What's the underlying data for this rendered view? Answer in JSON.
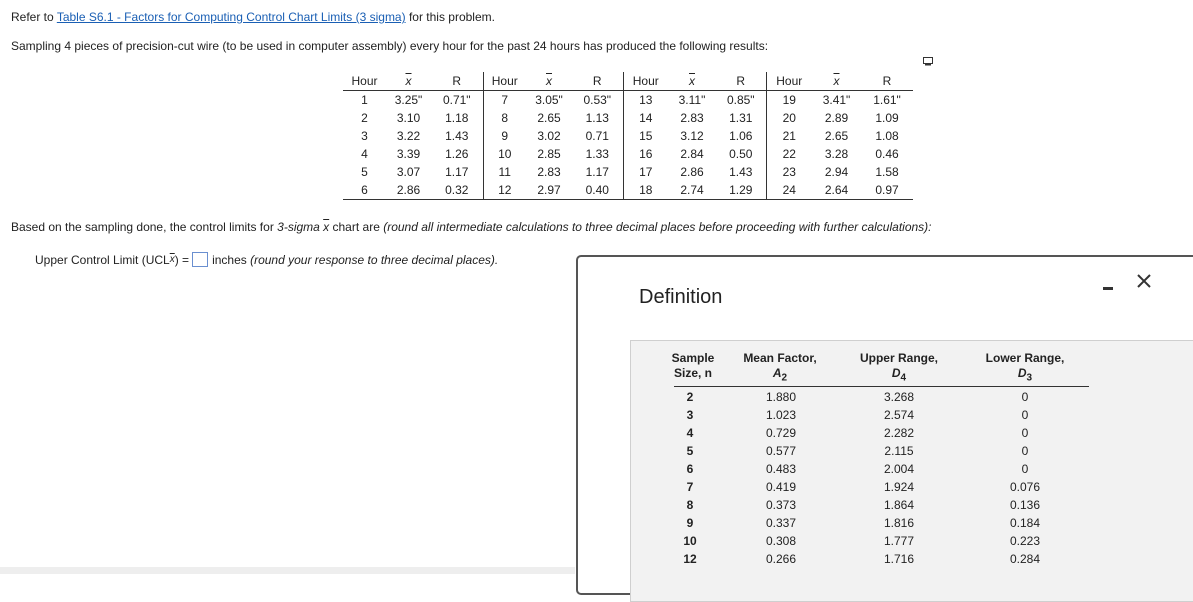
{
  "intro": {
    "prefix": "Refer to ",
    "link": "Table S6.1 - Factors for Computing Control Chart Limits (3 sigma)",
    "suffix": " for this problem."
  },
  "problem": "Sampling 4 pieces of precision-cut wire (to be used in computer assembly) every hour for the past 24 hours has produced the following results:",
  "data_table": {
    "headers": [
      "Hour",
      "x",
      "R",
      "Hour",
      "x",
      "R",
      "Hour",
      "x",
      "R",
      "Hour",
      "x",
      "R"
    ],
    "rows": [
      [
        "1",
        "3.25\"",
        "0.71\"",
        "7",
        "3.05\"",
        "0.53\"",
        "13",
        "3.11\"",
        "0.85\"",
        "19",
        "3.41\"",
        "1.61\""
      ],
      [
        "2",
        "3.10",
        "1.18",
        "8",
        "2.65",
        "1.13",
        "14",
        "2.83",
        "1.31",
        "20",
        "2.89",
        "1.09"
      ],
      [
        "3",
        "3.22",
        "1.43",
        "9",
        "3.02",
        "0.71",
        "15",
        "3.12",
        "1.06",
        "21",
        "2.65",
        "1.08"
      ],
      [
        "4",
        "3.39",
        "1.26",
        "10",
        "2.85",
        "1.33",
        "16",
        "2.84",
        "0.50",
        "22",
        "3.28",
        "0.46"
      ],
      [
        "5",
        "3.07",
        "1.17",
        "11",
        "2.83",
        "1.17",
        "17",
        "2.86",
        "1.43",
        "23",
        "2.94",
        "1.58"
      ],
      [
        "6",
        "2.86",
        "0.32",
        "12",
        "2.97",
        "0.40",
        "18",
        "2.74",
        "1.29",
        "24",
        "2.64",
        "0.97"
      ]
    ]
  },
  "question": {
    "part1": "Based on the sampling done, the control limits for ",
    "part2": "3-sigma ",
    "xbar": "x",
    "part3": " chart are ",
    "part4": "(round all intermediate calculations to three decimal places before proceeding with further calculations):"
  },
  "answer": {
    "label_a": "Upper Control Limit (UCL",
    "label_sub": "x",
    "label_b": ") =",
    "value": "",
    "unit": "inches",
    "note": "(round your response to three decimal places)."
  },
  "dialog": {
    "title": "Definition",
    "headers": {
      "n_line1": "Sample",
      "n_line2": "Size, n",
      "a_line1": "Mean Factor,",
      "a_sym": "A",
      "a_sub": "2",
      "d4_line1": "Upper Range,",
      "d4_sym": "D",
      "d4_sub": "4",
      "d3_line1": "Lower Range,",
      "d3_sym": "D",
      "d3_sub": "3"
    },
    "n": [
      "2",
      "3",
      "4",
      "5",
      "6",
      "7",
      "8",
      "9",
      "10",
      "12"
    ],
    "a2": [
      "1.880",
      "1.023",
      "0.729",
      "0.577",
      "0.483",
      "0.419",
      "0.373",
      "0.337",
      "0.308",
      "0.266"
    ],
    "d4": [
      "3.268",
      "2.574",
      "2.282",
      "2.115",
      "2.004",
      "1.924",
      "1.864",
      "1.816",
      "1.777",
      "1.716"
    ],
    "d3": [
      "0",
      "0",
      "0",
      "0",
      "0",
      "0.076",
      "0.136",
      "0.184",
      "0.223",
      "0.284"
    ]
  },
  "icons": [
    "copy-icon",
    "minimize-icon",
    "close-icon"
  ]
}
